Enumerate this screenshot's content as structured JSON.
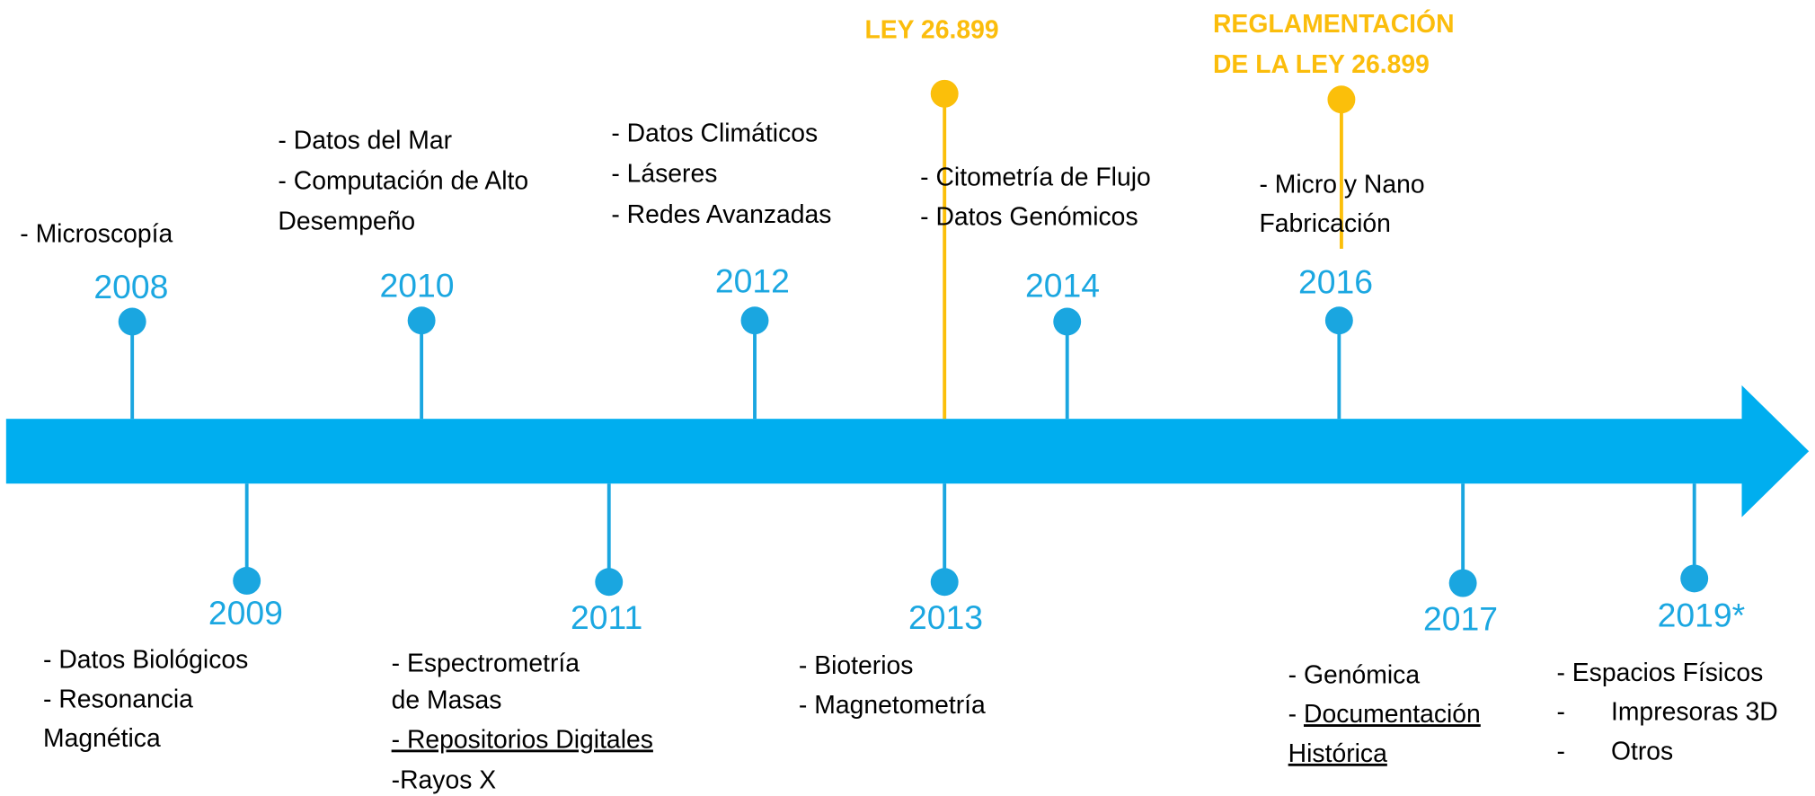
{
  "events": [
    {
      "year": "2008",
      "items": [
        [
          "- Microscopía"
        ]
      ]
    },
    {
      "year": "2009",
      "items": [
        [
          "- Datos Biológicos"
        ],
        [
          "- Resonancia"
        ],
        [
          "Magnética"
        ]
      ]
    },
    {
      "year": "2010",
      "items": [
        [
          "- Datos del Mar"
        ],
        [
          "- Computación de Alto"
        ],
        [
          "Desempeño"
        ]
      ]
    },
    {
      "year": "2011",
      "items": [
        [
          "- Espectrometría"
        ],
        [
          "de Masas"
        ],
        [
          "- Repositorios Digitales"
        ],
        [
          "-Rayos X"
        ]
      ]
    },
    {
      "year": "2012",
      "items": [
        [
          "- Datos Climáticos"
        ],
        [
          "- Láseres"
        ],
        [
          "- Redes Avanzadas"
        ]
      ]
    },
    {
      "year": "2013",
      "items": [
        [
          "- Bioterios"
        ],
        [
          "- Magnetometría"
        ]
      ]
    },
    {
      "year": "2014",
      "items": [
        [
          "- Citometría de Flujo"
        ],
        [
          "- Datos Genómicos"
        ]
      ]
    },
    {
      "year": "2016",
      "items": [
        [
          "- Micro y Nano"
        ],
        [
          "Fabricación"
        ]
      ]
    },
    {
      "year": "2017",
      "items": [
        [
          "- Genómica"
        ],
        [
          "- ",
          "Documentación"
        ],
        [
          "Histórica"
        ]
      ]
    },
    {
      "year": "2019*",
      "items": [
        [
          "- Espacios Físicos"
        ],
        [
          "-",
          "Impresoras 3D"
        ],
        [
          "-",
          "Otros"
        ]
      ]
    }
  ],
  "laws": [
    {
      "lines": [
        "LEY 26.899"
      ]
    },
    {
      "lines": [
        "REGLAMENTACIÓN",
        "DE LA LEY 26.899"
      ]
    }
  ]
}
